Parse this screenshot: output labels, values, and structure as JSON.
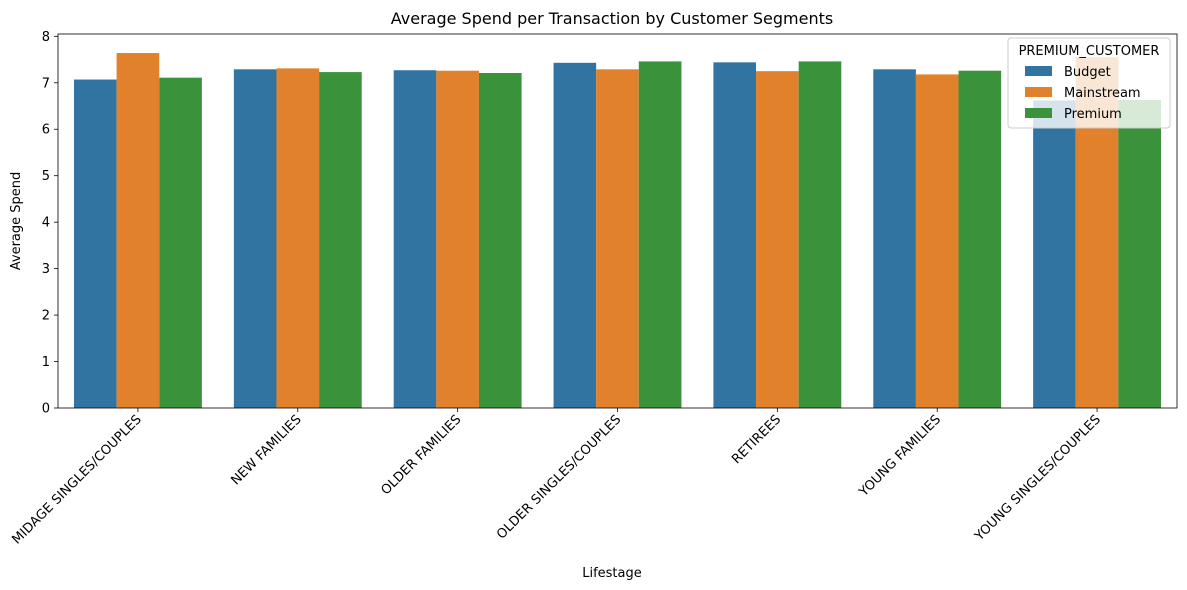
{
  "chart_data": {
    "type": "bar",
    "title": "Average Spend per Transaction by Customer Segments",
    "xlabel": "Lifestage",
    "ylabel": "Average Spend",
    "ylim": [
      0,
      8.05
    ],
    "yticks": [
      0,
      1,
      2,
      3,
      4,
      5,
      6,
      7,
      8
    ],
    "categories": [
      "MIDAGE SINGLES/COUPLES",
      "NEW FAMILIES",
      "OLDER FAMILIES",
      "OLDER SINGLES/COUPLES",
      "RETIREES",
      "YOUNG FAMILIES",
      "YOUNG SINGLES/COUPLES"
    ],
    "series": [
      {
        "name": "Budget",
        "color": "#3274a1",
        "values": [
          7.07,
          7.29,
          7.27,
          7.43,
          7.44,
          7.29,
          6.62
        ]
      },
      {
        "name": "Mainstream",
        "color": "#e1812c",
        "values": [
          7.64,
          7.31,
          7.26,
          7.29,
          7.25,
          7.18,
          7.55
        ]
      },
      {
        "name": "Premium",
        "color": "#3a923a",
        "values": [
          7.11,
          7.23,
          7.21,
          7.46,
          7.46,
          7.26,
          6.63
        ]
      }
    ],
    "legend": {
      "title": "PREMIUM_CUSTOMER",
      "position": "top-right"
    },
    "grid": false
  }
}
